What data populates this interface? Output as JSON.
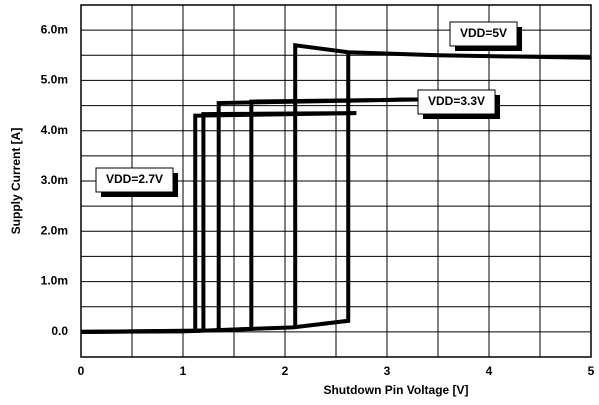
{
  "chart_data": {
    "type": "line",
    "x_label": "Shutdown Pin Voltage [V]",
    "y_label": "Supply Current [A]",
    "xlim": [
      0,
      5
    ],
    "xticks": [
      0,
      1,
      2,
      3,
      4,
      5
    ],
    "ylim": [
      -0.0005,
      0.0065
    ],
    "yticks": [
      {
        "value": 0,
        "label": "0.0"
      },
      {
        "value": 0.001,
        "label": "1.0m"
      },
      {
        "value": 0.002,
        "label": "2.0m"
      },
      {
        "value": 0.003,
        "label": "3.0m"
      },
      {
        "value": 0.004,
        "label": "4.0m"
      },
      {
        "value": 0.005,
        "label": "5.0m"
      },
      {
        "value": 0.006,
        "label": "6.0m"
      }
    ],
    "grid": true,
    "series": [
      {
        "name": "VDD=5V",
        "color": "#000000",
        "x": [
          0,
          1,
          2.08,
          2.62,
          2.62,
          3.5,
          5,
          3.5,
          2.62,
          2.1,
          2.1
        ],
        "values": [
          0,
          1e-05,
          9e-05,
          0.00022,
          0.00556,
          0.0055,
          0.00545,
          0.0055,
          0.00556,
          0.0057,
          9e-05
        ]
      },
      {
        "name": "VDD=3.3V",
        "color": "#000000",
        "x": [
          0,
          1.35,
          1.67,
          1.67,
          3.3,
          1.35,
          1.35
        ],
        "values": [
          0,
          3e-05,
          6e-05,
          0.00458,
          0.00462,
          0.00455,
          3e-05
        ]
      },
      {
        "name": "VDD=2.7V",
        "color": "#000000",
        "x": [
          0,
          1.12,
          1.2,
          1.2,
          2.7,
          1.12,
          1.12
        ],
        "values": [
          0,
          2e-05,
          3e-05,
          0.00433,
          0.00435,
          0.0043,
          2e-05
        ]
      }
    ]
  }
}
